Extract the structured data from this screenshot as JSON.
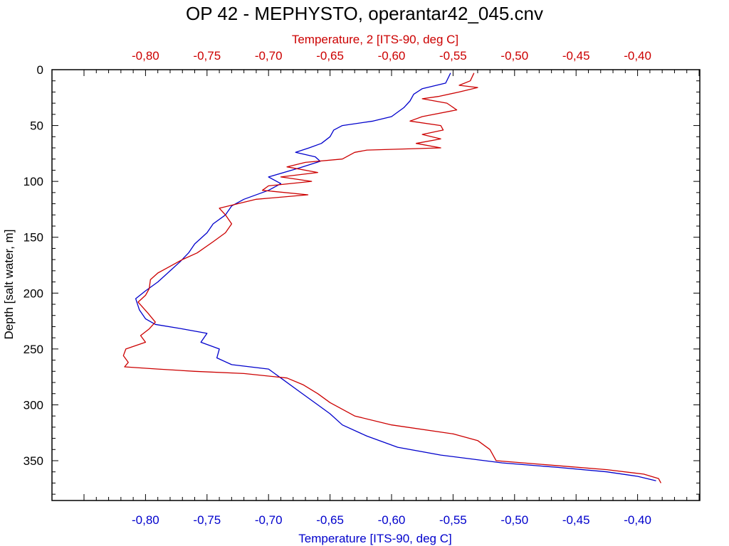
{
  "chart_data": {
    "type": "line",
    "title": "OP 42 - MEPHYSTO, operantar42_045.cnv",
    "ylabel": "Depth [salt water, m]",
    "y_inverted": true,
    "ylim": [
      0,
      385
    ],
    "y_ticks": [
      "0",
      "50",
      "100",
      "150",
      "200",
      "250",
      "300",
      "350"
    ],
    "bottom_axis": {
      "label": "Temperature [ITS-90, deg C]",
      "color": "#0000cc",
      "xlim": [
        -0.85,
        -0.35
      ],
      "ticks": [
        "-0,80",
        "-0,75",
        "-0,70",
        "-0,65",
        "-0,60",
        "-0,55",
        "-0,50",
        "-0,45",
        "-0,40"
      ]
    },
    "top_axis": {
      "label": "Temperature, 2 [ITS-90, deg C]",
      "color": "#cc0000",
      "xlim": [
        -0.85,
        -0.35
      ],
      "ticks": [
        "-0,80",
        "-0,75",
        "-0,70",
        "-0,65",
        "-0,60",
        "-0,55",
        "-0,50",
        "-0,45",
        "-0,40"
      ]
    },
    "grid": false,
    "legend": "none",
    "series": [
      {
        "axis": "bottom",
        "color": "#0000cc",
        "points": [
          [
            -0.552,
            3
          ],
          [
            -0.556,
            12
          ],
          [
            -0.575,
            17
          ],
          [
            -0.582,
            22
          ],
          [
            -0.585,
            28
          ],
          [
            -0.59,
            34
          ],
          [
            -0.6,
            42
          ],
          [
            -0.615,
            46
          ],
          [
            -0.64,
            50
          ],
          [
            -0.647,
            54
          ],
          [
            -0.65,
            60
          ],
          [
            -0.657,
            66
          ],
          [
            -0.667,
            70
          ],
          [
            -0.678,
            74
          ],
          [
            -0.662,
            78
          ],
          [
            -0.658,
            82
          ],
          [
            -0.675,
            88
          ],
          [
            -0.7,
            96
          ],
          [
            -0.69,
            102
          ],
          [
            -0.7,
            108
          ],
          [
            -0.72,
            116
          ],
          [
            -0.73,
            122
          ],
          [
            -0.735,
            130
          ],
          [
            -0.745,
            138
          ],
          [
            -0.75,
            146
          ],
          [
            -0.76,
            156
          ],
          [
            -0.765,
            164
          ],
          [
            -0.772,
            172
          ],
          [
            -0.78,
            180
          ],
          [
            -0.79,
            190
          ],
          [
            -0.8,
            198
          ],
          [
            -0.808,
            205
          ],
          [
            -0.805,
            215
          ],
          [
            -0.8,
            223
          ],
          [
            -0.792,
            228
          ],
          [
            -0.77,
            232
          ],
          [
            -0.75,
            236
          ],
          [
            -0.755,
            244
          ],
          [
            -0.74,
            250
          ],
          [
            -0.742,
            258
          ],
          [
            -0.73,
            264
          ],
          [
            -0.7,
            268
          ],
          [
            -0.69,
            276
          ],
          [
            -0.675,
            288
          ],
          [
            -0.66,
            300
          ],
          [
            -0.65,
            308
          ],
          [
            -0.64,
            318
          ],
          [
            -0.62,
            328
          ],
          [
            -0.595,
            338
          ],
          [
            -0.56,
            345
          ],
          [
            -0.51,
            352
          ],
          [
            -0.465,
            356
          ],
          [
            -0.425,
            360
          ],
          [
            -0.4,
            364
          ],
          [
            -0.385,
            368
          ]
        ]
      },
      {
        "axis": "top",
        "color": "#cc0000",
        "points": [
          [
            -0.533,
            3
          ],
          [
            -0.536,
            10
          ],
          [
            -0.545,
            14
          ],
          [
            -0.53,
            16
          ],
          [
            -0.545,
            20
          ],
          [
            -0.562,
            24
          ],
          [
            -0.575,
            26
          ],
          [
            -0.555,
            30
          ],
          [
            -0.547,
            36
          ],
          [
            -0.575,
            42
          ],
          [
            -0.585,
            46
          ],
          [
            -0.56,
            50
          ],
          [
            -0.558,
            54
          ],
          [
            -0.575,
            58
          ],
          [
            -0.56,
            62
          ],
          [
            -0.58,
            66
          ],
          [
            -0.56,
            70
          ],
          [
            -0.62,
            72
          ],
          [
            -0.63,
            74
          ],
          [
            -0.64,
            80
          ],
          [
            -0.67,
            83
          ],
          [
            -0.685,
            87
          ],
          [
            -0.66,
            92
          ],
          [
            -0.69,
            96
          ],
          [
            -0.665,
            100
          ],
          [
            -0.7,
            104
          ],
          [
            -0.705,
            108
          ],
          [
            -0.668,
            112
          ],
          [
            -0.71,
            116
          ],
          [
            -0.74,
            124
          ],
          [
            -0.735,
            130
          ],
          [
            -0.73,
            138
          ],
          [
            -0.735,
            146
          ],
          [
            -0.745,
            154
          ],
          [
            -0.758,
            164
          ],
          [
            -0.77,
            170
          ],
          [
            -0.78,
            176
          ],
          [
            -0.79,
            182
          ],
          [
            -0.796,
            188
          ],
          [
            -0.797,
            196
          ],
          [
            -0.8,
            202
          ],
          [
            -0.806,
            208
          ],
          [
            -0.798,
            218
          ],
          [
            -0.792,
            226
          ],
          [
            -0.797,
            232
          ],
          [
            -0.804,
            238
          ],
          [
            -0.8,
            244
          ],
          [
            -0.816,
            250
          ],
          [
            -0.818,
            256
          ],
          [
            -0.814,
            262
          ],
          [
            -0.817,
            266
          ],
          [
            -0.79,
            268
          ],
          [
            -0.76,
            270
          ],
          [
            -0.72,
            272
          ],
          [
            -0.685,
            276
          ],
          [
            -0.672,
            282
          ],
          [
            -0.66,
            290
          ],
          [
            -0.65,
            298
          ],
          [
            -0.63,
            310
          ],
          [
            -0.6,
            318
          ],
          [
            -0.55,
            326
          ],
          [
            -0.53,
            332
          ],
          [
            -0.52,
            340
          ],
          [
            -0.515,
            350
          ],
          [
            -0.47,
            354
          ],
          [
            -0.425,
            358
          ],
          [
            -0.395,
            362
          ],
          [
            -0.383,
            366
          ],
          [
            -0.381,
            370
          ]
        ]
      }
    ]
  }
}
